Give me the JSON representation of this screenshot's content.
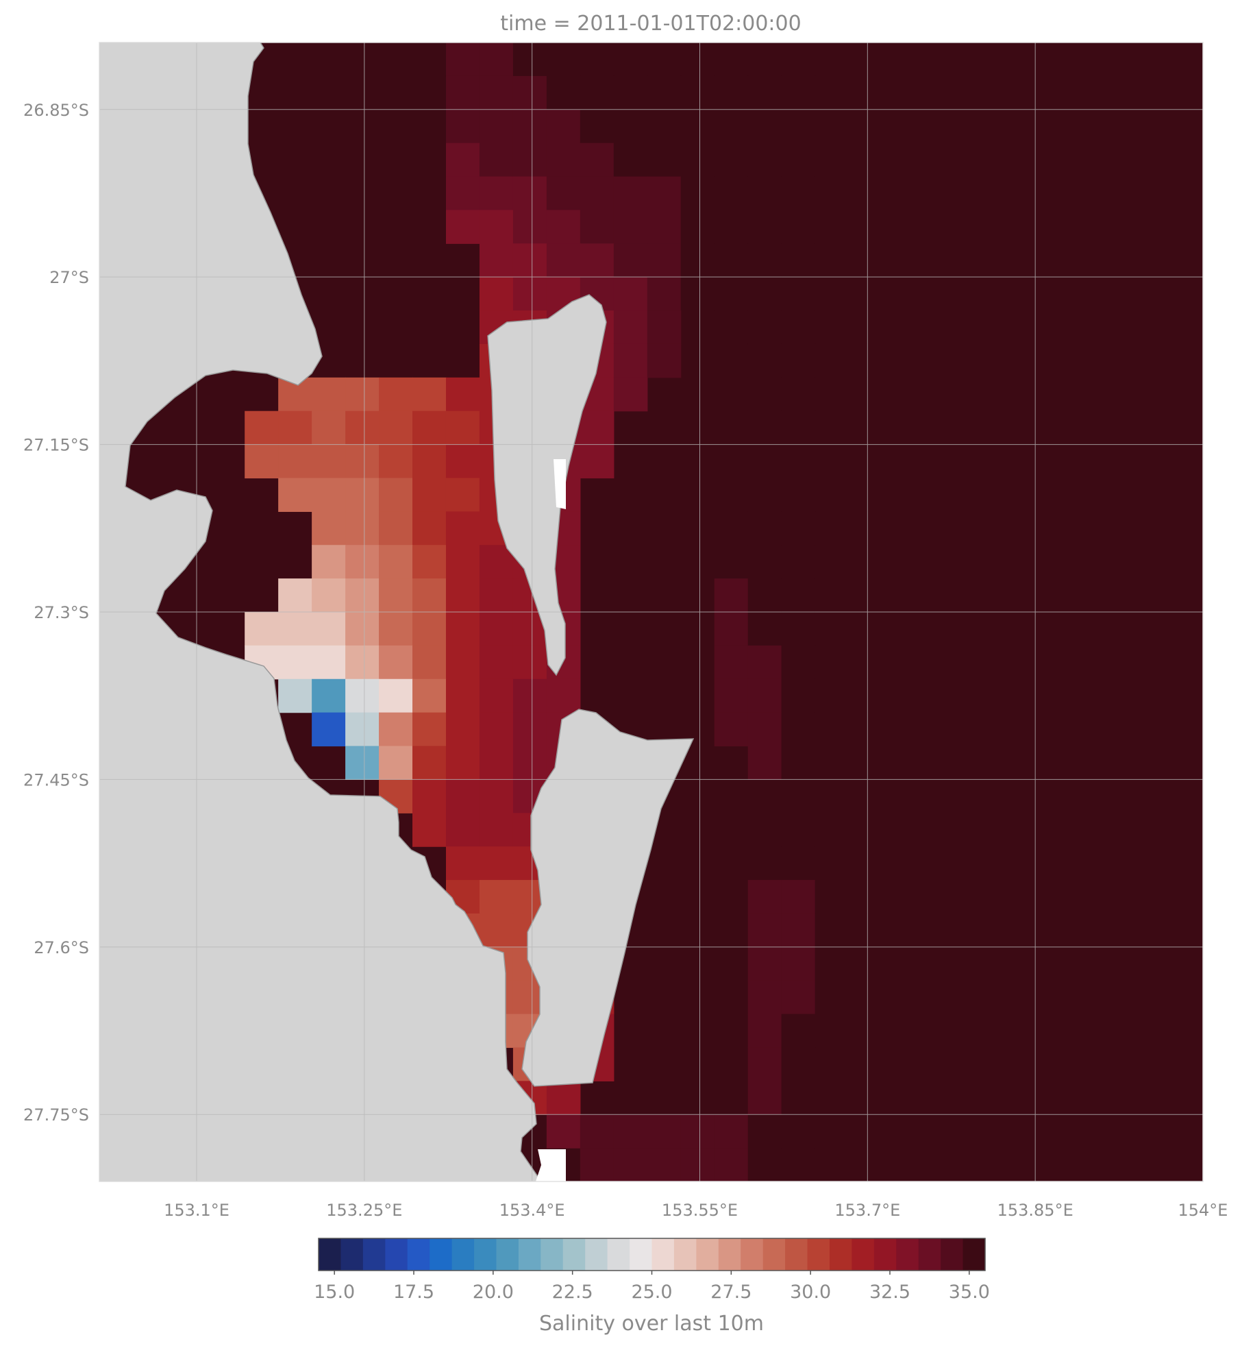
{
  "chart_data": {
    "type": "heatmap",
    "title": "time = 2011-01-01T02:00:00",
    "xlabel": "",
    "ylabel": "",
    "x_ticks": [
      {
        "value": 153.1,
        "label": "153.1°E"
      },
      {
        "value": 153.25,
        "label": "153.25°E"
      },
      {
        "value": 153.4,
        "label": "153.4°E"
      },
      {
        "value": 153.55,
        "label": "153.55°E"
      },
      {
        "value": 153.7,
        "label": "153.7°E"
      },
      {
        "value": 153.85,
        "label": "153.85°E"
      },
      {
        "value": 154.0,
        "label": "154°E"
      }
    ],
    "y_ticks": [
      {
        "value": -26.85,
        "label": "26.85°S"
      },
      {
        "value": -27.0,
        "label": "27°S"
      },
      {
        "value": -27.15,
        "label": "27.15°S"
      },
      {
        "value": -27.3,
        "label": "27.3°S"
      },
      {
        "value": -27.45,
        "label": "27.45°S"
      },
      {
        "value": -27.6,
        "label": "27.6°S"
      },
      {
        "value": -27.75,
        "label": "27.75°S"
      }
    ],
    "xlim": [
      153.013,
      154.0
    ],
    "ylim": [
      -27.81,
      -26.79
    ],
    "grid": true,
    "land_color": "#d3d3d3",
    "colorbar": {
      "label": "Salinity over last 10m",
      "vmin": 14.5,
      "vmax": 35.5,
      "levels": 30,
      "tick_labels": [
        "15.0",
        "17.5",
        "20.0",
        "22.5",
        "25.0",
        "27.5",
        "30.0",
        "32.5",
        "35.0"
      ],
      "tick_values": [
        15.0,
        17.5,
        20.0,
        22.5,
        25.0,
        27.5,
        30.0,
        32.5,
        35.0
      ],
      "colors": [
        "#1b1f4e",
        "#1d2b6f",
        "#213a92",
        "#2547b0",
        "#2459c5",
        "#1d6cc8",
        "#2a7dc1",
        "#3a8bbe",
        "#5099bd",
        "#6ba8c3",
        "#87b6c6",
        "#a3c3cb",
        "#c0cfd4",
        "#d9dadc",
        "#e9e5e6",
        "#edd7d2",
        "#e7c3b8",
        "#e1ae9e",
        "#d99684",
        "#d17e6b",
        "#c86a55",
        "#bf5643",
        "#b84233",
        "#ad2e27",
        "#a21e24",
        "#931625",
        "#801227",
        "#6a0f24",
        "#530c1d",
        "#3c0a14"
      ]
    },
    "field_rows": {
      "lat_edges": [
        -26.79,
        -26.82,
        -26.85,
        -26.88,
        -26.91,
        -26.94,
        -26.97,
        -27.0,
        -27.03,
        -27.06,
        -27.09,
        -27.12,
        -27.15,
        -27.18,
        -27.21,
        -27.24,
        -27.27,
        -27.3,
        -27.33,
        -27.36,
        -27.39,
        -27.42,
        -27.45,
        -27.48,
        -27.51,
        -27.54,
        -27.57,
        -27.6,
        -27.63,
        -27.66,
        -27.69,
        -27.72,
        -27.75,
        -27.78,
        -27.81
      ],
      "lon_edges": [
        153.113,
        153.143,
        153.173,
        153.203,
        153.233,
        153.263,
        153.293,
        153.323,
        153.353,
        153.383,
        153.413,
        153.443,
        153.473,
        153.503,
        153.533,
        153.563,
        153.593,
        153.623,
        153.653
      ],
      "values": [
        [
          null,
          null,
          null,
          null,
          null,
          null,
          null,
          34.2,
          34.6,
          35.0,
          35.0,
          35.0,
          35.0,
          35.0,
          35.0,
          35.0,
          35.0,
          35.0
        ],
        [
          null,
          null,
          null,
          null,
          null,
          null,
          null,
          34.2,
          34.4,
          34.8,
          35.0,
          35.0,
          35.0,
          35.0,
          35.0,
          35.0,
          35.0,
          35.0
        ],
        [
          null,
          null,
          null,
          null,
          null,
          null,
          null,
          34.2,
          34.2,
          34.4,
          34.6,
          35.0,
          35.0,
          35.0,
          35.0,
          35.0,
          35.0,
          35.0
        ],
        [
          null,
          null,
          null,
          null,
          null,
          null,
          null,
          33.8,
          34.2,
          34.2,
          34.4,
          34.6,
          35.0,
          35.0,
          35.0,
          35.0,
          35.0,
          35.0
        ],
        [
          null,
          null,
          null,
          null,
          null,
          null,
          null,
          33.6,
          33.6,
          33.6,
          34.2,
          34.4,
          34.6,
          34.8,
          35.0,
          35.0,
          35.0,
          35.0
        ],
        [
          null,
          null,
          null,
          null,
          null,
          null,
          null,
          33.4,
          33.4,
          33.6,
          33.8,
          34.2,
          34.4,
          34.8,
          35.0,
          35.0,
          35.0,
          35.0
        ],
        [
          null,
          null,
          null,
          null,
          null,
          null,
          null,
          null,
          32.9,
          33.3,
          33.6,
          33.8,
          34.2,
          34.6,
          35.0,
          35.0,
          35.0,
          35.0
        ],
        [
          null,
          null,
          null,
          null,
          null,
          null,
          null,
          null,
          32.6,
          32.9,
          33.4,
          33.6,
          34.0,
          34.4,
          35.0,
          35.0,
          35.0,
          35.0
        ],
        [
          null,
          null,
          null,
          null,
          null,
          null,
          null,
          null,
          32.4,
          32.6,
          33.0,
          33.4,
          33.8,
          34.2,
          null,
          35.0,
          35.0,
          35.0
        ],
        [
          null,
          null,
          null,
          null,
          null,
          null,
          null,
          null,
          31.8,
          32.2,
          32.8,
          33.2,
          33.6,
          34.2,
          null,
          null,
          35.0,
          35.0
        ],
        [
          null,
          null,
          29.8,
          29.8,
          29.8,
          29.9,
          30.4,
          31.3,
          31.8,
          32.4,
          32.8,
          33.2,
          33.6,
          null,
          null,
          null,
          35.0,
          35.0
        ],
        [
          null,
          29.9,
          29.9,
          29.8,
          29.9,
          30.1,
          30.8,
          31.2,
          31.6,
          32.2,
          32.8,
          33.2,
          null,
          null,
          null,
          null,
          35.0,
          35.0
        ],
        [
          null,
          29.8,
          29.7,
          29.6,
          29.7,
          29.9,
          30.8,
          31.3,
          31.8,
          32.3,
          32.8,
          33.2,
          null,
          null,
          null,
          null,
          35.0,
          35.0
        ],
        [
          null,
          null,
          28.9,
          29.0,
          29.1,
          29.6,
          30.6,
          31.2,
          31.8,
          32.3,
          32.8,
          null,
          null,
          null,
          null,
          null,
          35.0,
          35.0
        ],
        [
          null,
          null,
          null,
          28.6,
          28.7,
          29.3,
          30.6,
          31.3,
          31.8,
          32.3,
          32.8,
          null,
          null,
          null,
          null,
          null,
          35.0,
          35.0
        ],
        [
          null,
          null,
          null,
          27.6,
          28.2,
          29.1,
          30.3,
          31.5,
          32.1,
          32.6,
          33.0,
          null,
          null,
          null,
          null,
          null,
          35.0,
          35.0
        ],
        [
          null,
          null,
          26.3,
          26.5,
          27.6,
          28.6,
          29.8,
          31.4,
          32.1,
          32.6,
          33.0,
          null,
          null,
          null,
          null,
          34.8,
          35.0,
          35.0
        ],
        [
          null,
          25.8,
          25.9,
          26.1,
          27.3,
          28.7,
          29.7,
          31.4,
          32.2,
          32.6,
          33.0,
          null,
          null,
          null,
          null,
          34.8,
          35.0,
          35.0
        ],
        [
          null,
          25.4,
          25.2,
          25.6,
          27.0,
          28.2,
          29.8,
          31.6,
          32.4,
          32.6,
          33.0,
          null,
          null,
          null,
          null,
          34.6,
          34.8,
          35.0
        ],
        [
          null,
          null,
          23.0,
          20.6,
          23.8,
          25.2,
          29.1,
          31.6,
          32.6,
          32.8,
          33.0,
          null,
          null,
          null,
          null,
          34.6,
          34.6,
          35.0
        ],
        [
          null,
          null,
          null,
          17.5,
          23.2,
          28.1,
          30.1,
          31.6,
          32.6,
          32.8,
          33.0,
          null,
          null,
          null,
          null,
          34.6,
          34.6,
          35.0
        ],
        [
          null,
          null,
          null,
          null,
          21.3,
          27.6,
          31.2,
          31.9,
          32.6,
          32.8,
          33.0,
          null,
          null,
          null,
          null,
          null,
          34.8,
          35.0
        ],
        [
          null,
          null,
          null,
          null,
          null,
          30.2,
          31.6,
          32.2,
          32.6,
          32.8,
          32.9,
          33.2,
          33.6,
          null,
          null,
          null,
          null,
          35.0
        ],
        [
          null,
          null,
          null,
          null,
          null,
          null,
          31.8,
          32.2,
          32.3,
          32.5,
          32.4,
          32.3,
          null,
          null,
          null,
          null,
          null,
          35.0
        ],
        [
          null,
          null,
          null,
          null,
          null,
          null,
          null,
          31.6,
          31.4,
          31.6,
          31.4,
          31.1,
          null,
          null,
          null,
          null,
          null,
          35.0
        ],
        [
          null,
          null,
          null,
          null,
          null,
          null,
          null,
          30.8,
          30.5,
          30.4,
          30.5,
          30.8,
          null,
          null,
          null,
          null,
          34.6,
          34.8
        ],
        [
          null,
          null,
          null,
          null,
          null,
          null,
          null,
          30.0,
          29.9,
          29.9,
          30.0,
          30.6,
          null,
          null,
          null,
          null,
          34.6,
          34.6
        ],
        [
          null,
          null,
          null,
          null,
          null,
          null,
          null,
          null,
          29.6,
          29.5,
          29.8,
          31.0,
          null,
          null,
          null,
          null,
          34.6,
          34.6
        ],
        [
          null,
          null,
          null,
          null,
          null,
          null,
          null,
          null,
          29.4,
          29.3,
          29.9,
          31.6,
          null,
          null,
          null,
          null,
          34.6,
          34.8
        ],
        [
          null,
          null,
          null,
          null,
          null,
          null,
          null,
          null,
          29.1,
          28.8,
          31.0,
          32.2,
          null,
          null,
          null,
          null,
          34.8,
          35.0
        ],
        [
          null,
          null,
          null,
          null,
          null,
          null,
          null,
          null,
          null,
          29.2,
          31.4,
          32.4,
          null,
          null,
          null,
          null,
          34.8,
          35.0
        ],
        [
          null,
          null,
          null,
          null,
          null,
          null,
          null,
          null,
          null,
          31.5,
          32.3,
          null,
          null,
          null,
          null,
          null,
          34.8,
          35.0
        ],
        [
          null,
          null,
          null,
          null,
          null,
          null,
          null,
          null,
          null,
          null,
          33.6,
          34.2,
          34.6,
          34.6,
          34.8,
          34.8,
          35.0,
          35.0
        ],
        [
          null,
          null,
          null,
          null,
          null,
          null,
          null,
          null,
          null,
          null,
          null,
          34.2,
          34.4,
          34.6,
          34.8,
          34.8,
          35.0,
          35.0
        ]
      ],
      "east_fill": 35.0
    }
  }
}
